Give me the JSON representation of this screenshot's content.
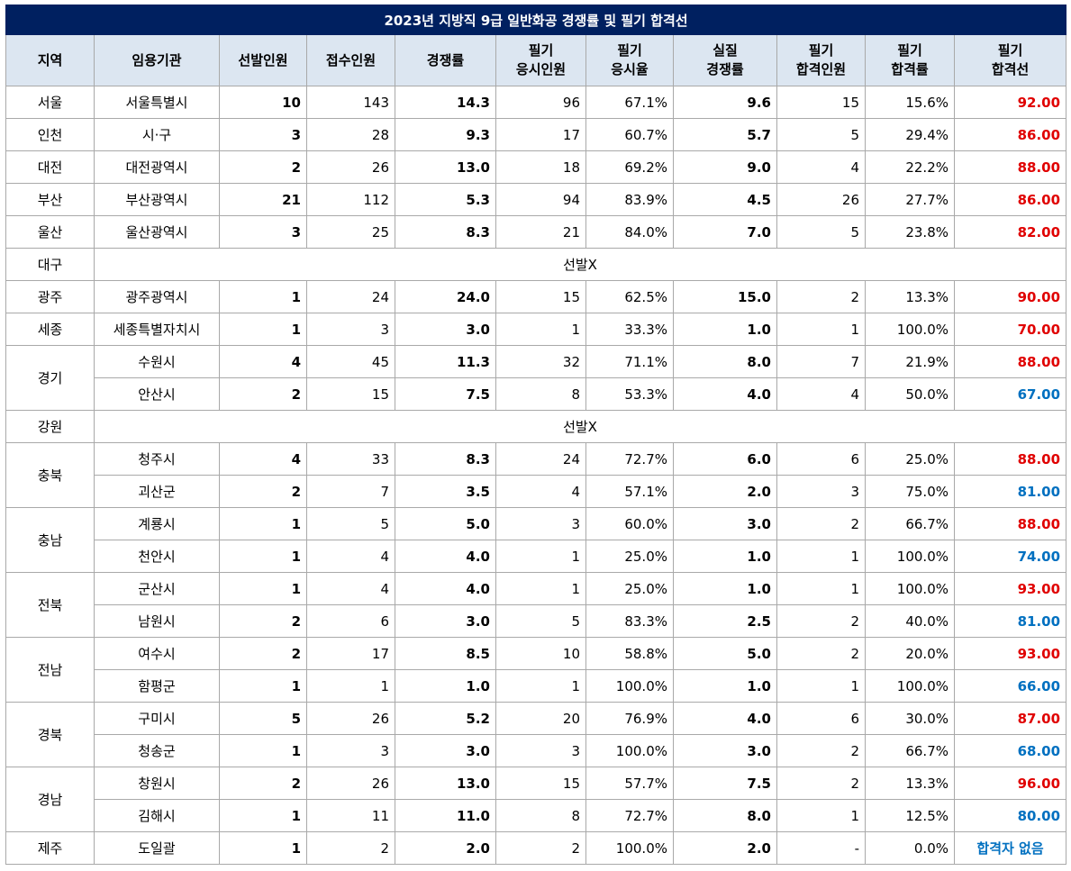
{
  "title": "2023년 지방직 9급 일반화공 경쟁률 및 필기 합격선",
  "headers": [
    "지역",
    "임용기관",
    "선발인원",
    "접수인원",
    "경쟁률",
    "필기\n응시인원",
    "필기\n응시율",
    "실질\n경쟁률",
    "필기\n합격인원",
    "필기\n합격률",
    "필기\n합격선"
  ],
  "no_selection_text": "선발X",
  "rows": [
    {
      "region": "서울",
      "agency": "서울특별시",
      "selected": "10",
      "applied": "143",
      "ratio": "14.3",
      "exam_taken": "96",
      "exam_rate": "67.1%",
      "real_ratio": "9.6",
      "passed": "15",
      "pass_rate": "15.6%",
      "cutoff": "92.00",
      "cutoff_color": "red"
    },
    {
      "region": "인천",
      "agency": "시·구",
      "selected": "3",
      "applied": "28",
      "ratio": "9.3",
      "exam_taken": "17",
      "exam_rate": "60.7%",
      "real_ratio": "5.7",
      "passed": "5",
      "pass_rate": "29.4%",
      "cutoff": "86.00",
      "cutoff_color": "red"
    },
    {
      "region": "대전",
      "agency": "대전광역시",
      "selected": "2",
      "applied": "26",
      "ratio": "13.0",
      "exam_taken": "18",
      "exam_rate": "69.2%",
      "real_ratio": "9.0",
      "passed": "4",
      "pass_rate": "22.2%",
      "cutoff": "88.00",
      "cutoff_color": "red"
    },
    {
      "region": "부산",
      "agency": "부산광역시",
      "selected": "21",
      "applied": "112",
      "ratio": "5.3",
      "exam_taken": "94",
      "exam_rate": "83.9%",
      "real_ratio": "4.5",
      "passed": "26",
      "pass_rate": "27.7%",
      "cutoff": "86.00",
      "cutoff_color": "red"
    },
    {
      "region": "울산",
      "agency": "울산광역시",
      "selected": "3",
      "applied": "25",
      "ratio": "8.3",
      "exam_taken": "21",
      "exam_rate": "84.0%",
      "real_ratio": "7.0",
      "passed": "5",
      "pass_rate": "23.8%",
      "cutoff": "82.00",
      "cutoff_color": "red"
    },
    {
      "region": "대구",
      "no_selection": true
    },
    {
      "region": "광주",
      "agency": "광주광역시",
      "selected": "1",
      "applied": "24",
      "ratio": "24.0",
      "exam_taken": "15",
      "exam_rate": "62.5%",
      "real_ratio": "15.0",
      "passed": "2",
      "pass_rate": "13.3%",
      "cutoff": "90.00",
      "cutoff_color": "red"
    },
    {
      "region": "세종",
      "agency": "세종특별자치시",
      "selected": "1",
      "applied": "3",
      "ratio": "3.0",
      "exam_taken": "1",
      "exam_rate": "33.3%",
      "real_ratio": "1.0",
      "passed": "1",
      "pass_rate": "100.0%",
      "cutoff": "70.00",
      "cutoff_color": "red"
    },
    {
      "region": "경기",
      "agency": "수원시",
      "selected": "4",
      "applied": "45",
      "ratio": "11.3",
      "exam_taken": "32",
      "exam_rate": "71.1%",
      "real_ratio": "8.0",
      "passed": "7",
      "pass_rate": "21.9%",
      "cutoff": "88.00",
      "cutoff_color": "red"
    },
    {
      "region": "경기",
      "agency": "안산시",
      "selected": "2",
      "applied": "15",
      "ratio": "7.5",
      "exam_taken": "8",
      "exam_rate": "53.3%",
      "real_ratio": "4.0",
      "passed": "4",
      "pass_rate": "50.0%",
      "cutoff": "67.00",
      "cutoff_color": "blue"
    },
    {
      "region": "강원",
      "no_selection": true
    },
    {
      "region": "충북",
      "agency": "청주시",
      "selected": "4",
      "applied": "33",
      "ratio": "8.3",
      "exam_taken": "24",
      "exam_rate": "72.7%",
      "real_ratio": "6.0",
      "passed": "6",
      "pass_rate": "25.0%",
      "cutoff": "88.00",
      "cutoff_color": "red"
    },
    {
      "region": "충북",
      "agency": "괴산군",
      "selected": "2",
      "applied": "7",
      "ratio": "3.5",
      "exam_taken": "4",
      "exam_rate": "57.1%",
      "real_ratio": "2.0",
      "passed": "3",
      "pass_rate": "75.0%",
      "cutoff": "81.00",
      "cutoff_color": "blue"
    },
    {
      "region": "충남",
      "agency": "계룡시",
      "selected": "1",
      "applied": "5",
      "ratio": "5.0",
      "exam_taken": "3",
      "exam_rate": "60.0%",
      "real_ratio": "3.0",
      "passed": "2",
      "pass_rate": "66.7%",
      "cutoff": "88.00",
      "cutoff_color": "red"
    },
    {
      "region": "충남",
      "agency": "천안시",
      "selected": "1",
      "applied": "4",
      "ratio": "4.0",
      "exam_taken": "1",
      "exam_rate": "25.0%",
      "real_ratio": "1.0",
      "passed": "1",
      "pass_rate": "100.0%",
      "cutoff": "74.00",
      "cutoff_color": "blue"
    },
    {
      "region": "전북",
      "agency": "군산시",
      "selected": "1",
      "applied": "4",
      "ratio": "4.0",
      "exam_taken": "1",
      "exam_rate": "25.0%",
      "real_ratio": "1.0",
      "passed": "1",
      "pass_rate": "100.0%",
      "cutoff": "93.00",
      "cutoff_color": "red"
    },
    {
      "region": "전북",
      "agency": "남원시",
      "selected": "2",
      "applied": "6",
      "ratio": "3.0",
      "exam_taken": "5",
      "exam_rate": "83.3%",
      "real_ratio": "2.5",
      "passed": "2",
      "pass_rate": "40.0%",
      "cutoff": "81.00",
      "cutoff_color": "blue"
    },
    {
      "region": "전남",
      "agency": "여수시",
      "selected": "2",
      "applied": "17",
      "ratio": "8.5",
      "exam_taken": "10",
      "exam_rate": "58.8%",
      "real_ratio": "5.0",
      "passed": "2",
      "pass_rate": "20.0%",
      "cutoff": "93.00",
      "cutoff_color": "red"
    },
    {
      "region": "전남",
      "agency": "함평군",
      "selected": "1",
      "applied": "1",
      "ratio": "1.0",
      "exam_taken": "1",
      "exam_rate": "100.0%",
      "real_ratio": "1.0",
      "passed": "1",
      "pass_rate": "100.0%",
      "cutoff": "66.00",
      "cutoff_color": "blue"
    },
    {
      "region": "경북",
      "agency": "구미시",
      "selected": "5",
      "applied": "26",
      "ratio": "5.2",
      "exam_taken": "20",
      "exam_rate": "76.9%",
      "real_ratio": "4.0",
      "passed": "6",
      "pass_rate": "30.0%",
      "cutoff": "87.00",
      "cutoff_color": "red"
    },
    {
      "region": "경북",
      "agency": "청송군",
      "selected": "1",
      "applied": "3",
      "ratio": "3.0",
      "exam_taken": "3",
      "exam_rate": "100.0%",
      "real_ratio": "3.0",
      "passed": "2",
      "pass_rate": "66.7%",
      "cutoff": "68.00",
      "cutoff_color": "blue"
    },
    {
      "region": "경남",
      "agency": "창원시",
      "selected": "2",
      "applied": "26",
      "ratio": "13.0",
      "exam_taken": "15",
      "exam_rate": "57.7%",
      "real_ratio": "7.5",
      "passed": "2",
      "pass_rate": "13.3%",
      "cutoff": "96.00",
      "cutoff_color": "red"
    },
    {
      "region": "경남",
      "agency": "김해시",
      "selected": "1",
      "applied": "11",
      "ratio": "11.0",
      "exam_taken": "8",
      "exam_rate": "72.7%",
      "real_ratio": "8.0",
      "passed": "1",
      "pass_rate": "12.5%",
      "cutoff": "80.00",
      "cutoff_color": "blue"
    },
    {
      "region": "제주",
      "agency": "도일괄",
      "selected": "1",
      "applied": "2",
      "ratio": "2.0",
      "exam_taken": "2",
      "exam_rate": "100.0%",
      "real_ratio": "2.0",
      "passed": "-",
      "pass_rate": "0.0%",
      "cutoff": "합격자 없음",
      "cutoff_color": "none"
    }
  ]
}
